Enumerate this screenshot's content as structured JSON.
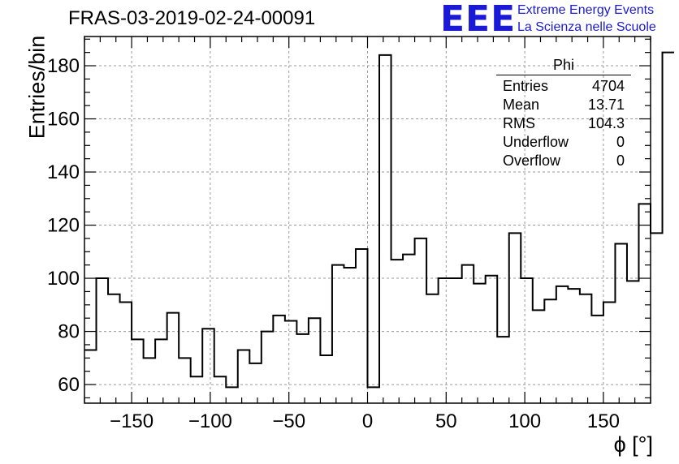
{
  "header": {
    "title": "FRAS-03-2019-02-24-00091",
    "logo_text": "EEE",
    "logo_line1": "Extreme Energy Events",
    "logo_line2": "La Scienza nelle Scuole"
  },
  "stats_box": {
    "title": "Phi",
    "rows": [
      {
        "label": "Entries",
        "value": "4704"
      },
      {
        "label": "Mean",
        "value": "13.71"
      },
      {
        "label": "RMS",
        "value": "104.3"
      },
      {
        "label": "Underflow",
        "value": "0"
      },
      {
        "label": "Overflow",
        "value": "0"
      }
    ]
  },
  "chart_data": {
    "type": "histogram",
    "title": "FRAS-03-2019-02-24-00091",
    "xlabel": "ϕ [°]",
    "ylabel": "Entries/bin",
    "xlim": [
      -180,
      180
    ],
    "ylim": [
      53,
      191
    ],
    "bin_width": 7.5,
    "bin_start": -180,
    "values": [
      73,
      100,
      94,
      91,
      77,
      70,
      77,
      87,
      70,
      63,
      81,
      63,
      59,
      73,
      68,
      80,
      86,
      84,
      79,
      85,
      71,
      105,
      104,
      111,
      59,
      184,
      107,
      109,
      115,
      94,
      100,
      100,
      105,
      98,
      101,
      78,
      117,
      100,
      88,
      92,
      97,
      96,
      94,
      86,
      91,
      113,
      99,
      128,
      117,
      185
    ],
    "xticks": [
      -150,
      -100,
      -50,
      0,
      50,
      100,
      150
    ],
    "xtick_labels": [
      "−150",
      "−100",
      "−50",
      "0",
      "50",
      "100",
      "150"
    ],
    "yticks": [
      60,
      80,
      100,
      120,
      140,
      160,
      180
    ],
    "ytick_labels": [
      "60",
      "80",
      "100",
      "120",
      "140",
      "160",
      "180"
    ],
    "grid": true,
    "legend": "top-right stats box",
    "colors": {
      "line": "#000000",
      "grid": "#9a9a9a",
      "logo": "#1a1ad6"
    }
  }
}
